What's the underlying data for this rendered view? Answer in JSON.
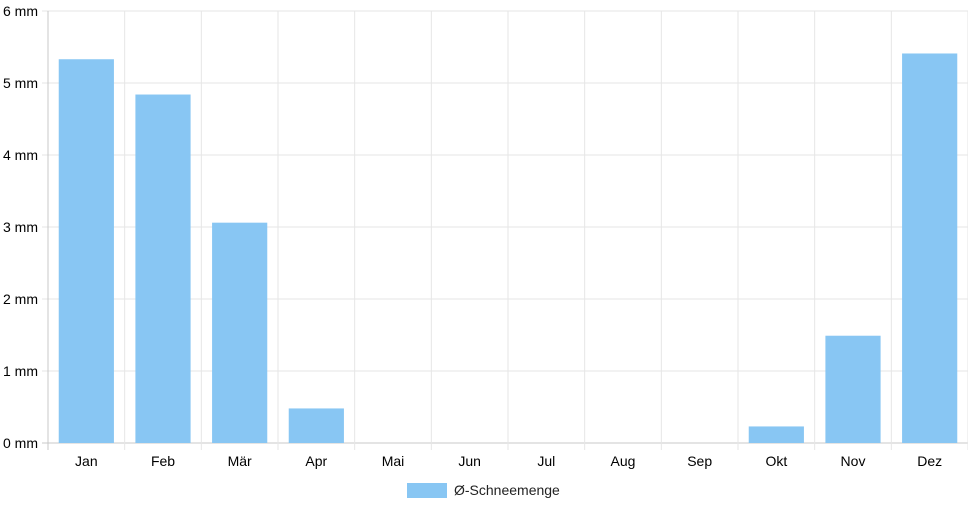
{
  "chart_data": {
    "type": "bar",
    "categories": [
      "Jan",
      "Feb",
      "Mär",
      "Apr",
      "Mai",
      "Jun",
      "Jul",
      "Aug",
      "Sep",
      "Okt",
      "Nov",
      "Dez"
    ],
    "series": [
      {
        "name": "Ø-Schneemenge",
        "values": [
          5.33,
          4.84,
          3.06,
          0.48,
          0,
          0,
          0,
          0,
          0,
          0.23,
          1.49,
          5.41
        ],
        "color": "#88c6f3"
      }
    ],
    "y_ticks": [
      "0 mm",
      "1 mm",
      "2 mm",
      "3 mm",
      "4 mm",
      "5 mm",
      "6 mm"
    ],
    "ylim": [
      0,
      6
    ],
    "grid": true,
    "legend_position": "bottom"
  }
}
